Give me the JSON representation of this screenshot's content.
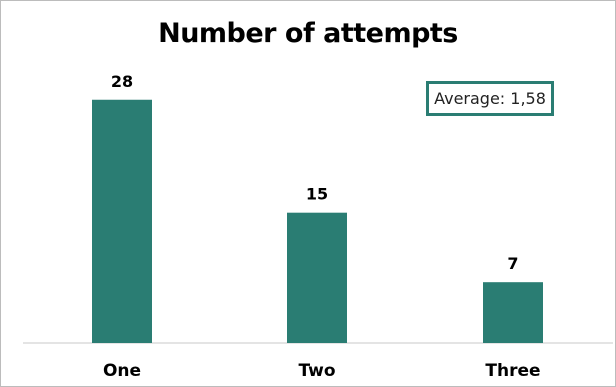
{
  "chart_data": {
    "type": "bar",
    "title": "Number of attempts",
    "categories": [
      "One",
      "Two",
      "Three"
    ],
    "values": [
      28,
      15,
      7
    ],
    "data_labels": [
      "28",
      "15",
      "7"
    ],
    "annotation": "Average: 1,58",
    "ylim": [
      0,
      32
    ],
    "grid": false,
    "legend": "none",
    "colors": {
      "bar": "#2a7d73",
      "annotation_border": "#2a7d73",
      "axis": "#c8c8c8"
    }
  }
}
